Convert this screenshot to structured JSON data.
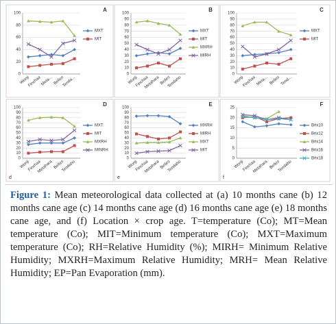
{
  "chart_data": [
    {
      "type": "line",
      "label": "A",
      "categories": [
        "Wonji",
        "Finchaa",
        "Meta...",
        "Belles",
        "Tenda..."
      ],
      "ylim": [
        0,
        100
      ],
      "yticks": [
        0,
        20,
        40,
        60,
        80,
        100
      ],
      "grid": true,
      "series": [
        {
          "name": "MXT",
          "color": "#4f81bd",
          "marker": "diamond",
          "values": [
            28,
            30,
            32,
            30,
            40
          ]
        },
        {
          "name": "MIT",
          "color": "#c0504d",
          "marker": "square",
          "values": [
            12,
            14,
            16,
            17,
            25
          ]
        },
        {
          "color": "#9bbb59",
          "marker": "triangle",
          "values": [
            87,
            86,
            85,
            87,
            63
          ]
        },
        {
          "color": "#8064a2",
          "marker": "x",
          "values": [
            49,
            40,
            28,
            50,
            55
          ]
        }
      ]
    },
    {
      "type": "line",
      "label": "B",
      "categories": [
        "Wonji",
        "Finchaa",
        "Metahara",
        "Belles",
        "Tendaho"
      ],
      "ylim": [
        0,
        100
      ],
      "yticks": [
        0,
        10,
        20,
        30,
        40,
        50,
        60,
        70,
        80,
        90,
        100
      ],
      "grid": true,
      "series": [
        {
          "name": "MXT",
          "color": "#4f81bd",
          "marker": "diamond",
          "values": [
            30,
            33,
            35,
            33,
            42
          ]
        },
        {
          "name": "MIT",
          "color": "#c0504d",
          "marker": "square",
          "values": [
            10,
            13,
            18,
            13,
            25
          ]
        },
        {
          "name": "MXRH",
          "color": "#9bbb59",
          "marker": "triangle",
          "values": [
            85,
            87,
            83,
            80,
            65
          ]
        },
        {
          "name": "MIRH",
          "color": "#8064a2",
          "marker": "x",
          "values": [
            48,
            40,
            33,
            40,
            55
          ]
        }
      ]
    },
    {
      "type": "line",
      "label": "C",
      "categories": [
        "Wonji",
        "Finchaa",
        "Meta...",
        "Belles",
        "Tend..."
      ],
      "ylim": [
        0,
        100
      ],
      "yticks": [
        0,
        10,
        20,
        30,
        40,
        50,
        60,
        70,
        80,
        90,
        100
      ],
      "grid": true,
      "series": [
        {
          "name": "MXT",
          "color": "#4f81bd",
          "marker": "diamond",
          "values": [
            30,
            32,
            33,
            35,
            40
          ]
        },
        {
          "name": "MIT",
          "color": "#c0504d",
          "marker": "square",
          "values": [
            8,
            13,
            18,
            16,
            25
          ]
        },
        {
          "color": "#9bbb59",
          "marker": "triangle",
          "values": [
            79,
            85,
            85,
            70,
            64
          ]
        },
        {
          "color": "#8064a2",
          "marker": "x",
          "values": [
            45,
            28,
            33,
            40,
            55
          ]
        }
      ]
    },
    {
      "type": "line",
      "label": "D",
      "sublabel": "d",
      "categories": [
        "Wonji",
        "Finchaa",
        "Metahara",
        "Belles",
        "Tendaho"
      ],
      "ylim": [
        0,
        100
      ],
      "yticks": [
        0,
        10,
        20,
        30,
        40,
        50,
        60,
        70,
        80,
        90,
        100
      ],
      "grid": true,
      "series": [
        {
          "name": "MXT",
          "color": "#4f81bd",
          "marker": "diamond",
          "values": [
            27,
            30,
            30,
            30,
            40
          ]
        },
        {
          "name": "MIT",
          "color": "#c0504d",
          "marker": "square",
          "values": [
            10,
            12,
            13,
            13,
            25
          ]
        },
        {
          "name": "MXRH",
          "color": "#9bbb59",
          "marker": "triangle",
          "values": [
            75,
            80,
            81,
            80,
            63
          ]
        },
        {
          "name": "MINRH",
          "color": "#8064a2",
          "marker": "x",
          "values": [
            33,
            37,
            35,
            37,
            55
          ]
        }
      ]
    },
    {
      "type": "line",
      "label": "E",
      "sublabel": "e",
      "categories": [
        "Wonji",
        "Finchaa",
        "Metahara",
        "Belles",
        "Tendaho"
      ],
      "ylim": [
        0,
        100
      ],
      "yticks": [
        0,
        10,
        20,
        30,
        40,
        50,
        60,
        70,
        80,
        90,
        100
      ],
      "grid": true,
      "series": [
        {
          "name": "MXRH",
          "color": "#4f81bd",
          "marker": "diamond",
          "values": [
            83,
            84,
            84,
            82,
            68
          ]
        },
        {
          "name": "MIRH",
          "color": "#c0504d",
          "marker": "square",
          "values": [
            48,
            43,
            38,
            40,
            52
          ]
        },
        {
          "name": "MXT",
          "color": "#9bbb59",
          "marker": "triangle",
          "values": [
            30,
            31,
            31,
            32,
            40
          ]
        },
        {
          "name": "MIT",
          "color": "#8064a2",
          "marker": "x",
          "values": [
            10,
            13,
            14,
            15,
            25
          ]
        }
      ]
    },
    {
      "type": "line",
      "label": "F",
      "sublabel": "f",
      "categories": [
        "Wonji",
        "Finchaa",
        "Metahara",
        "Belles",
        "Tendaho"
      ],
      "ylim": [
        0,
        25
      ],
      "yticks": [
        0,
        5,
        10,
        15,
        20,
        25
      ],
      "grid": true,
      "series": [
        {
          "name": "Brix10",
          "color": "#4f81bd",
          "marker": "diamond",
          "values": [
            18,
            15.5,
            16,
            17,
            16.5
          ]
        },
        {
          "name": "Brix12",
          "color": "#c0504d",
          "marker": "square",
          "values": [
            20,
            20.5,
            18,
            19.5,
            20
          ]
        },
        {
          "name": "Brix14",
          "color": "#9bbb59",
          "marker": "triangle",
          "values": [
            21,
            20,
            19.5,
            23,
            null
          ]
        },
        {
          "name": "Brix16",
          "color": "#8064a2",
          "marker": "x",
          "values": [
            21.5,
            21,
            19,
            20,
            19
          ]
        },
        {
          "name": "Brix18",
          "color": "#4bacc6",
          "marker": "x",
          "values": [
            20.5,
            20,
            19,
            19.5,
            19
          ]
        }
      ]
    }
  ],
  "caption": {
    "label": "Figure 1:",
    "text": "Mean meteorological data collected at (a) 10 months cane (b) 12 months cane age (c) 14 months cane age (d) 16 months cane age (e) 18 months cane age, and (f) Location × crop age. T=temperature (Co); MT=Mean temperature (Co); MIT=Minimum temperature (Co); MXT=Maximum temperature (Co); RH=Relative Humidity (%); MIRH= Minimum Relative Humidity; MXRH=Maximum Relative Humidity; MRH= Mean Relative Humidity; EP=Pan Evaporation (mm)."
  }
}
